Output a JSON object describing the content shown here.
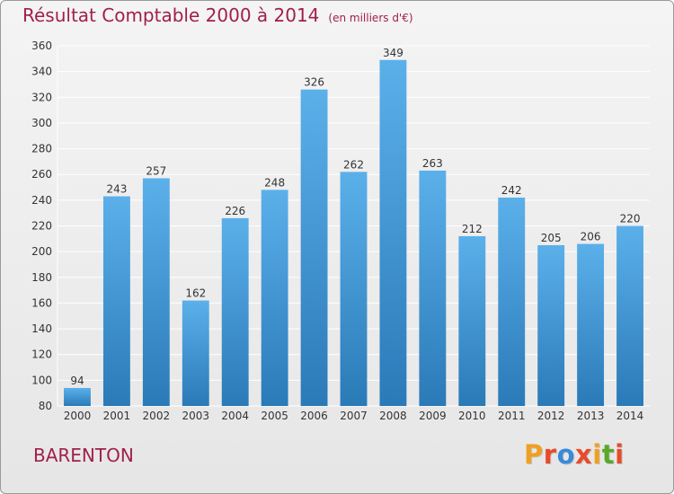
{
  "header": {
    "title": "Résultat Comptable 2000 à 2014",
    "subtitle": "(en milliers d'€)"
  },
  "footer": {
    "commune": "BARENTON",
    "logo": "Proxiti"
  },
  "colors": {
    "title": "#a0204a",
    "bar_top": "#5bb0ea",
    "bar_bottom": "#2a7ab8",
    "grid": "#ffffff",
    "logo_letters": [
      "#f0a020",
      "#e84a2a",
      "#3a8ad8",
      "#e84a2a",
      "#f0a020",
      "#5aa82a",
      "#e84a2a"
    ]
  },
  "chart_data": {
    "type": "bar",
    "title": "Résultat Comptable 2000 à 2014",
    "subtitle": "(en milliers d'€)",
    "categories": [
      "2000",
      "2001",
      "2002",
      "2003",
      "2004",
      "2005",
      "2006",
      "2007",
      "2008",
      "2009",
      "2010",
      "2011",
      "2012",
      "2013",
      "2014"
    ],
    "values": [
      94,
      243,
      257,
      162,
      226,
      248,
      326,
      262,
      349,
      263,
      212,
      242,
      205,
      206,
      220
    ],
    "ylim": [
      80,
      360
    ],
    "yticks": [
      80,
      100,
      120,
      140,
      160,
      180,
      200,
      220,
      240,
      260,
      280,
      300,
      320,
      340,
      360
    ],
    "grid": true,
    "xlabel": "",
    "ylabel": ""
  }
}
